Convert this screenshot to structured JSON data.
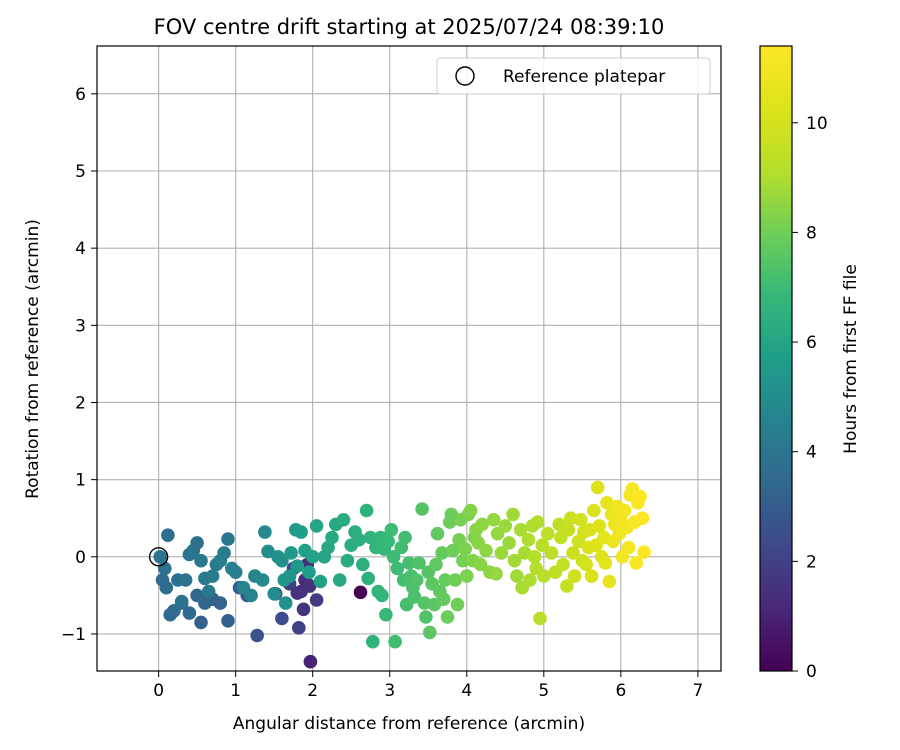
{
  "chart_data": {
    "type": "scatter",
    "title": "FOV centre drift starting at 2025/07/24 08:39:10",
    "xlabel": "Angular distance from reference (arcmin)",
    "ylabel": "Rotation from reference (arcmin)",
    "xlim": [
      -0.8,
      7.3
    ],
    "ylim": [
      -1.48,
      6.62
    ],
    "xticks": [
      0,
      1,
      2,
      3,
      4,
      5,
      6,
      7
    ],
    "yticks": [
      -1,
      0,
      1,
      2,
      3,
      4,
      5,
      6
    ],
    "grid": true,
    "legend": {
      "placement": "top-right",
      "entries": [
        "Reference platepar"
      ]
    },
    "reference_point": {
      "x": 0,
      "y": 0,
      "marker": "open-circle"
    },
    "colorbar": {
      "label": "Hours from first FF file",
      "range": [
        0,
        11.4
      ],
      "ticks": [
        0,
        2,
        4,
        6,
        8,
        10
      ],
      "colormap": "viridis"
    },
    "series": [
      {
        "values": [
          [
            2.62,
            -0.46,
            0.1
          ],
          [
            1.97,
            -1.36,
            1.0
          ],
          [
            1.9,
            -0.3,
            1.2
          ],
          [
            1.85,
            -0.45,
            1.4
          ],
          [
            1.8,
            -0.47,
            1.5
          ],
          [
            1.93,
            -0.1,
            1.3
          ],
          [
            1.96,
            -0.38,
            1.5
          ],
          [
            1.88,
            -0.68,
            1.6
          ],
          [
            2.05,
            -0.56,
            1.8
          ],
          [
            1.82,
            -0.92,
            2.0
          ],
          [
            1.7,
            -0.35,
            1.9
          ],
          [
            1.75,
            -0.15,
            2.2
          ],
          [
            1.6,
            -0.8,
            2.4
          ],
          [
            1.52,
            -0.48,
            2.6
          ],
          [
            1.28,
            -1.02,
            2.7
          ],
          [
            1.15,
            -0.5,
            2.8
          ],
          [
            1.05,
            -0.4,
            3.0
          ],
          [
            0.9,
            -0.83,
            3.1
          ],
          [
            0.8,
            -0.6,
            3.2
          ],
          [
            0.7,
            -0.55,
            3.1
          ],
          [
            0.6,
            -0.6,
            3.3
          ],
          [
            0.55,
            -0.85,
            3.2
          ],
          [
            0.5,
            -0.5,
            3.4
          ],
          [
            0.4,
            -0.73,
            3.5
          ],
          [
            0.3,
            -0.6,
            3.4
          ],
          [
            0.2,
            -0.7,
            3.6
          ],
          [
            0.15,
            -0.75,
            3.5
          ],
          [
            0.1,
            -0.4,
            3.7
          ],
          [
            0.05,
            -0.3,
            3.6
          ],
          [
            0.08,
            -0.15,
            3.8
          ],
          [
            0.02,
            0.0,
            3.9
          ],
          [
            0.12,
            0.28,
            3.7
          ],
          [
            0.25,
            -0.3,
            3.8
          ],
          [
            0.3,
            -0.58,
            3.9
          ],
          [
            0.35,
            -0.3,
            4.0
          ],
          [
            0.4,
            0.03,
            3.9
          ],
          [
            0.45,
            0.08,
            4.0
          ],
          [
            0.5,
            0.18,
            3.8
          ],
          [
            0.55,
            -0.05,
            4.1
          ],
          [
            0.6,
            -0.28,
            4.2
          ],
          [
            0.65,
            -0.45,
            4.1
          ],
          [
            0.7,
            -0.25,
            4.3
          ],
          [
            0.75,
            -0.1,
            4.2
          ],
          [
            0.8,
            -0.05,
            4.4
          ],
          [
            0.85,
            0.05,
            4.3
          ],
          [
            0.9,
            0.23,
            4.1
          ],
          [
            0.95,
            -0.15,
            4.5
          ],
          [
            1.0,
            -0.2,
            4.4
          ],
          [
            1.1,
            -0.4,
            4.6
          ],
          [
            1.2,
            -0.5,
            4.5
          ],
          [
            1.25,
            -0.25,
            4.7
          ],
          [
            1.35,
            -0.3,
            4.8
          ],
          [
            1.38,
            0.32,
            4.9
          ],
          [
            1.42,
            0.07,
            5.0
          ],
          [
            1.5,
            -0.48,
            4.9
          ],
          [
            1.55,
            0.0,
            5.1
          ],
          [
            1.6,
            -0.05,
            5.2
          ],
          [
            1.63,
            -0.3,
            5.3
          ],
          [
            1.65,
            -0.6,
            5.2
          ],
          [
            1.7,
            -0.25,
            5.4
          ],
          [
            1.72,
            0.05,
            5.5
          ],
          [
            1.78,
            0.35,
            5.6
          ],
          [
            1.8,
            -0.12,
            5.5
          ],
          [
            1.85,
            0.32,
            5.7
          ],
          [
            1.9,
            0.08,
            5.8
          ],
          [
            1.95,
            -0.2,
            5.7
          ],
          [
            2.0,
            0.0,
            5.9
          ],
          [
            2.05,
            0.4,
            6.0
          ],
          [
            2.1,
            -0.32,
            5.9
          ],
          [
            2.15,
            0.0,
            6.0
          ],
          [
            2.2,
            0.12,
            6.1
          ],
          [
            2.25,
            0.25,
            6.2
          ],
          [
            2.3,
            0.42,
            6.1
          ],
          [
            2.35,
            -0.3,
            6.2
          ],
          [
            2.4,
            0.48,
            6.3
          ],
          [
            2.45,
            -0.05,
            6.3
          ],
          [
            2.5,
            0.15,
            6.4
          ],
          [
            2.55,
            0.32,
            6.4
          ],
          [
            2.6,
            0.22,
            6.5
          ],
          [
            2.65,
            -0.1,
            6.5
          ],
          [
            2.7,
            0.6,
            6.6
          ],
          [
            2.72,
            -0.28,
            6.5
          ],
          [
            2.75,
            0.25,
            6.6
          ],
          [
            2.78,
            -1.1,
            6.6
          ],
          [
            2.82,
            0.12,
            6.7
          ],
          [
            2.85,
            -0.45,
            6.7
          ],
          [
            2.88,
            0.25,
            6.8
          ],
          [
            2.9,
            -0.5,
            6.7
          ],
          [
            2.93,
            0.1,
            6.8
          ],
          [
            2.95,
            -0.75,
            6.9
          ],
          [
            2.98,
            0.2,
            6.9
          ],
          [
            3.02,
            0.35,
            7.0
          ],
          [
            3.05,
            0.0,
            7.0
          ],
          [
            3.07,
            -1.1,
            7.1
          ],
          [
            3.1,
            -0.15,
            7.0
          ],
          [
            3.15,
            0.12,
            7.1
          ],
          [
            3.18,
            -0.3,
            7.2
          ],
          [
            3.2,
            0.25,
            7.1
          ],
          [
            3.22,
            -0.62,
            7.2
          ],
          [
            3.25,
            -0.08,
            7.2
          ],
          [
            3.28,
            -0.25,
            7.3
          ],
          [
            3.3,
            -0.4,
            7.3
          ],
          [
            3.32,
            -0.52,
            7.3
          ],
          [
            3.35,
            -0.3,
            7.4
          ],
          [
            3.38,
            -0.08,
            7.4
          ],
          [
            3.42,
            0.62,
            7.5
          ],
          [
            3.45,
            -0.6,
            7.5
          ],
          [
            3.47,
            -0.78,
            7.4
          ],
          [
            3.5,
            -0.2,
            7.5
          ],
          [
            3.52,
            -0.98,
            7.6
          ],
          [
            3.55,
            -0.35,
            7.6
          ],
          [
            3.58,
            -0.62,
            7.6
          ],
          [
            3.6,
            -0.1,
            7.7
          ],
          [
            3.62,
            0.3,
            7.7
          ],
          [
            3.65,
            -0.45,
            7.7
          ],
          [
            3.68,
            0.05,
            7.8
          ],
          [
            3.7,
            -0.55,
            7.8
          ],
          [
            3.72,
            -0.3,
            7.8
          ],
          [
            3.75,
            -0.78,
            7.9
          ],
          [
            3.78,
            0.45,
            7.9
          ],
          [
            3.8,
            0.55,
            7.9
          ],
          [
            3.82,
            0.08,
            8.0
          ],
          [
            3.85,
            -0.3,
            8.0
          ],
          [
            3.88,
            -0.62,
            8.0
          ],
          [
            3.9,
            0.22,
            8.1
          ],
          [
            3.92,
            0.48,
            8.1
          ],
          [
            3.95,
            -0.05,
            8.1
          ],
          [
            3.98,
            0.1,
            8.2
          ],
          [
            4.0,
            -0.25,
            8.2
          ],
          [
            4.02,
            0.55,
            8.2
          ],
          [
            4.05,
            0.6,
            8.3
          ],
          [
            4.08,
            -0.05,
            8.3
          ],
          [
            4.1,
            0.25,
            8.3
          ],
          [
            4.12,
            0.35,
            8.4
          ],
          [
            4.15,
            0.18,
            8.4
          ],
          [
            4.18,
            -0.1,
            8.4
          ],
          [
            4.2,
            0.42,
            8.5
          ],
          [
            4.25,
            0.08,
            8.5
          ],
          [
            4.3,
            -0.2,
            8.5
          ],
          [
            4.35,
            0.48,
            8.6
          ],
          [
            4.38,
            -0.22,
            8.6
          ],
          [
            4.4,
            0.3,
            8.6
          ],
          [
            4.45,
            0.05,
            8.7
          ],
          [
            4.5,
            0.4,
            8.7
          ],
          [
            4.55,
            0.18,
            8.7
          ],
          [
            4.6,
            0.55,
            8.8
          ],
          [
            4.62,
            -0.05,
            8.8
          ],
          [
            4.65,
            -0.25,
            8.8
          ],
          [
            4.7,
            0.35,
            8.9
          ],
          [
            4.72,
            -0.4,
            8.9
          ],
          [
            4.75,
            0.05,
            8.9
          ],
          [
            4.8,
            0.22,
            9.0
          ],
          [
            4.82,
            -0.3,
            9.0
          ],
          [
            4.85,
            0.4,
            9.0
          ],
          [
            4.88,
            0.0,
            9.1
          ],
          [
            4.9,
            -0.15,
            9.1
          ],
          [
            4.92,
            0.45,
            9.1
          ],
          [
            4.95,
            -0.8,
            9.2
          ],
          [
            4.98,
            0.15,
            9.2
          ],
          [
            5.0,
            -0.25,
            9.2
          ],
          [
            5.05,
            0.3,
            9.3
          ],
          [
            5.1,
            0.05,
            9.3
          ],
          [
            5.15,
            -0.2,
            9.4
          ],
          [
            5.2,
            0.42,
            9.4
          ],
          [
            5.22,
            0.25,
            9.5
          ],
          [
            5.25,
            -0.1,
            9.5
          ],
          [
            5.3,
            -0.38,
            9.6
          ],
          [
            5.32,
            0.35,
            9.6
          ],
          [
            5.35,
            0.5,
            9.7
          ],
          [
            5.38,
            0.05,
            9.7
          ],
          [
            5.4,
            -0.25,
            9.8
          ],
          [
            5.45,
            0.2,
            9.8
          ],
          [
            5.48,
            0.48,
            9.9
          ],
          [
            5.5,
            -0.05,
            9.9
          ],
          [
            5.52,
            0.32,
            10.0
          ],
          [
            5.55,
            -0.1,
            10.0
          ],
          [
            5.58,
            0.12,
            10.1
          ],
          [
            5.6,
            0.35,
            10.1
          ],
          [
            5.62,
            -0.25,
            10.2
          ],
          [
            5.65,
            0.6,
            10.2
          ],
          [
            5.68,
            0.15,
            10.3
          ],
          [
            5.7,
            0.9,
            10.3
          ],
          [
            5.72,
            0.4,
            10.4
          ],
          [
            5.75,
            0.0,
            10.4
          ],
          [
            5.78,
            0.25,
            10.5
          ],
          [
            5.8,
            -0.08,
            10.5
          ],
          [
            5.82,
            0.7,
            10.6
          ],
          [
            5.85,
            -0.32,
            10.6
          ],
          [
            5.88,
            0.55,
            10.7
          ],
          [
            5.9,
            0.2,
            10.7
          ],
          [
            5.92,
            0.42,
            10.8
          ],
          [
            5.95,
            0.65,
            10.8
          ],
          [
            5.98,
            0.3,
            10.9
          ],
          [
            6.0,
            0.48,
            10.9
          ],
          [
            6.02,
            0.0,
            11.0
          ],
          [
            6.05,
            0.6,
            11.0
          ],
          [
            6.08,
            0.38,
            11.0
          ],
          [
            6.1,
            0.12,
            11.1
          ],
          [
            6.12,
            0.8,
            11.1
          ],
          [
            6.15,
            0.88,
            11.2
          ],
          [
            6.18,
            0.45,
            11.2
          ],
          [
            6.2,
            -0.08,
            11.3
          ],
          [
            6.22,
            0.7,
            11.3
          ],
          [
            6.25,
            0.78,
            11.4
          ],
          [
            6.28,
            0.5,
            11.4
          ],
          [
            6.3,
            0.06,
            11.4
          ]
        ]
      }
    ]
  }
}
